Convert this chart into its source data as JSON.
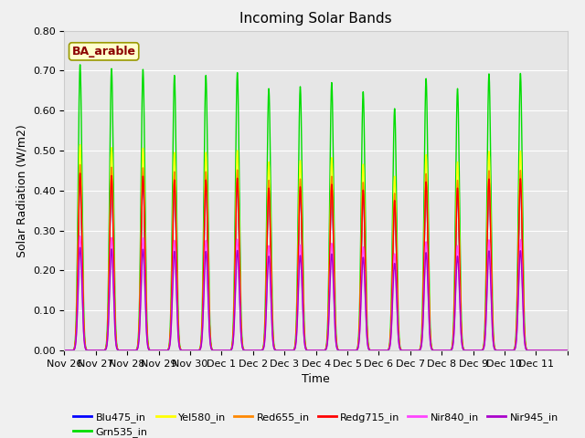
{
  "title": "Incoming Solar Bands",
  "xlabel": "Time",
  "ylabel": "Solar Radiation (W/m2)",
  "annotation": "BA_arable",
  "ylim": [
    0.0,
    0.8
  ],
  "yticks": [
    0.0,
    0.1,
    0.2,
    0.3,
    0.4,
    0.5,
    0.6,
    0.7,
    0.8
  ],
  "x_tick_labels": [
    "Nov 26",
    "Nov 27",
    "Nov 28",
    "Nov 29",
    "Nov 30",
    "Dec 1",
    "Dec 2",
    "Dec 3",
    "Dec 4",
    "Dec 5",
    "Dec 6",
    "Dec 7",
    "Dec 8",
    "Dec 9",
    "Dec 10",
    "Dec 11"
  ],
  "n_days": 16,
  "lines": [
    {
      "name": "Blu475_in",
      "color": "#0000ff",
      "lw": 1.0,
      "peak_scale": 0.62
    },
    {
      "name": "Grn535_in",
      "color": "#00dd00",
      "lw": 1.0,
      "peak_scale": 1.0
    },
    {
      "name": "Yel580_in",
      "color": "#ffff00",
      "lw": 1.0,
      "peak_scale": 0.72
    },
    {
      "name": "Red655_in",
      "color": "#ff8800",
      "lw": 1.0,
      "peak_scale": 0.65
    },
    {
      "name": "Redg715_in",
      "color": "#ff0000",
      "lw": 1.0,
      "peak_scale": 0.62
    },
    {
      "name": "Nir840_in",
      "color": "#ff44ff",
      "lw": 1.0,
      "peak_scale": 0.4
    },
    {
      "name": "Nir945_in",
      "color": "#aa00cc",
      "lw": 1.0,
      "peak_scale": 0.36
    }
  ],
  "daily_peaks_grn": [
    0.715,
    0.705,
    0.703,
    0.688,
    0.688,
    0.695,
    0.655,
    0.66,
    0.67,
    0.647,
    0.605,
    0.68,
    0.655,
    0.692,
    0.693,
    0.0
  ],
  "background_color": "#f0f0f0",
  "plot_bg_color": "#e6e6e6",
  "title_fontsize": 11,
  "label_fontsize": 9,
  "tick_fontsize": 8,
  "legend_fontsize": 8
}
